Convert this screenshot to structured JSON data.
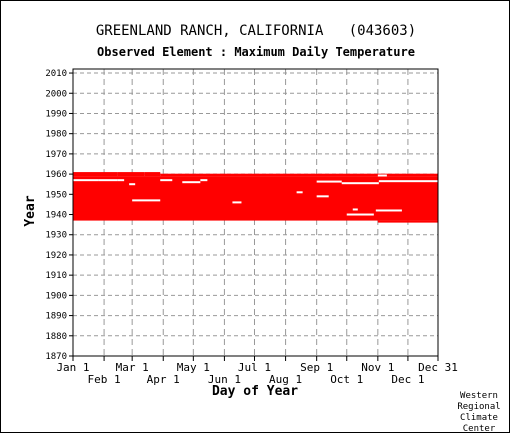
{
  "chart_data": {
    "type": "heatmap",
    "title": "GREENLAND RANCH, CALIFORNIA   (043603)",
    "subtitle": "Observed Element : Maximum Daily Temperature",
    "xlabel": "Day of Year",
    "ylabel": "Year",
    "x_ticks_top_row": [
      "Jan 1",
      "Mar 1",
      "May 1",
      "Jul 1",
      "Sep 1",
      "Nov 1",
      "Dec 31"
    ],
    "x_ticks_bottom_row": [
      "Feb 1",
      "Apr 1",
      "Jun 1",
      "Aug 1",
      "Oct 1",
      "Dec 1"
    ],
    "x_tick_days_top": [
      1,
      60,
      121,
      182,
      244,
      305,
      365
    ],
    "x_tick_days_bottom": [
      32,
      91,
      152,
      213,
      274,
      335
    ],
    "xlim": [
      1,
      365
    ],
    "y_ticks": [
      "2010",
      "2000",
      "1990",
      "1980",
      "1970",
      "1960",
      "1950",
      "1940",
      "1930",
      "1920",
      "1910",
      "1900",
      "1890",
      "1880",
      "1870"
    ],
    "ylim": [
      1870,
      2012
    ],
    "grid": true,
    "data_color": "#ff0000",
    "records": [
      {
        "from_year": 1937.0,
        "to_year": 1959.0,
        "from_day": 1,
        "to_day": 365
      },
      {
        "from_year": 1959.0,
        "to_year": 1961.0,
        "from_day": 1,
        "to_day": 45
      },
      {
        "from_year": 1959.0,
        "to_year": 1961.0,
        "from_day": 45,
        "to_day": 72
      },
      {
        "from_year": 1959.0,
        "to_year": 1961.0,
        "from_day": 72,
        "to_day": 88
      },
      {
        "from_year": 1959.0,
        "to_year": 1960.2,
        "from_day": 88,
        "to_day": 365
      },
      {
        "from_year": 1936.0,
        "to_year": 1937.0,
        "from_day": 305,
        "to_day": 365
      }
    ],
    "gaps": [
      {
        "year": 1957.0,
        "from_day": 1,
        "to_day": 26
      },
      {
        "year": 1957.0,
        "from_day": 26,
        "to_day": 45
      },
      {
        "year": 1957.0,
        "from_day": 45,
        "to_day": 52
      },
      {
        "year": 1957.0,
        "from_day": 88,
        "to_day": 100
      },
      {
        "year": 1956.0,
        "from_day": 110,
        "to_day": 128
      },
      {
        "year": 1957.0,
        "from_day": 128,
        "to_day": 135
      },
      {
        "year": 1956.3,
        "from_day": 244,
        "to_day": 269
      },
      {
        "year": 1955.5,
        "from_day": 269,
        "to_day": 306
      },
      {
        "year": 1956.5,
        "from_day": 306,
        "to_day": 365
      },
      {
        "year": 1947.0,
        "from_day": 60,
        "to_day": 88
      },
      {
        "year": 1949.0,
        "from_day": 244,
        "to_day": 256
      },
      {
        "year": 1951.0,
        "from_day": 224,
        "to_day": 230
      },
      {
        "year": 1942.5,
        "from_day": 280,
        "to_day": 285
      },
      {
        "year": 1940.0,
        "from_day": 274,
        "to_day": 301
      },
      {
        "year": 1942.0,
        "from_day": 303,
        "to_day": 329
      },
      {
        "year": 1946.0,
        "from_day": 160,
        "to_day": 169
      },
      {
        "year": 1955.0,
        "from_day": 57,
        "to_day": 63
      },
      {
        "year": 1959.3,
        "from_day": 305,
        "to_day": 314
      }
    ]
  },
  "footer": [
    "Western",
    "Regional",
    "Climate",
    "Center"
  ]
}
